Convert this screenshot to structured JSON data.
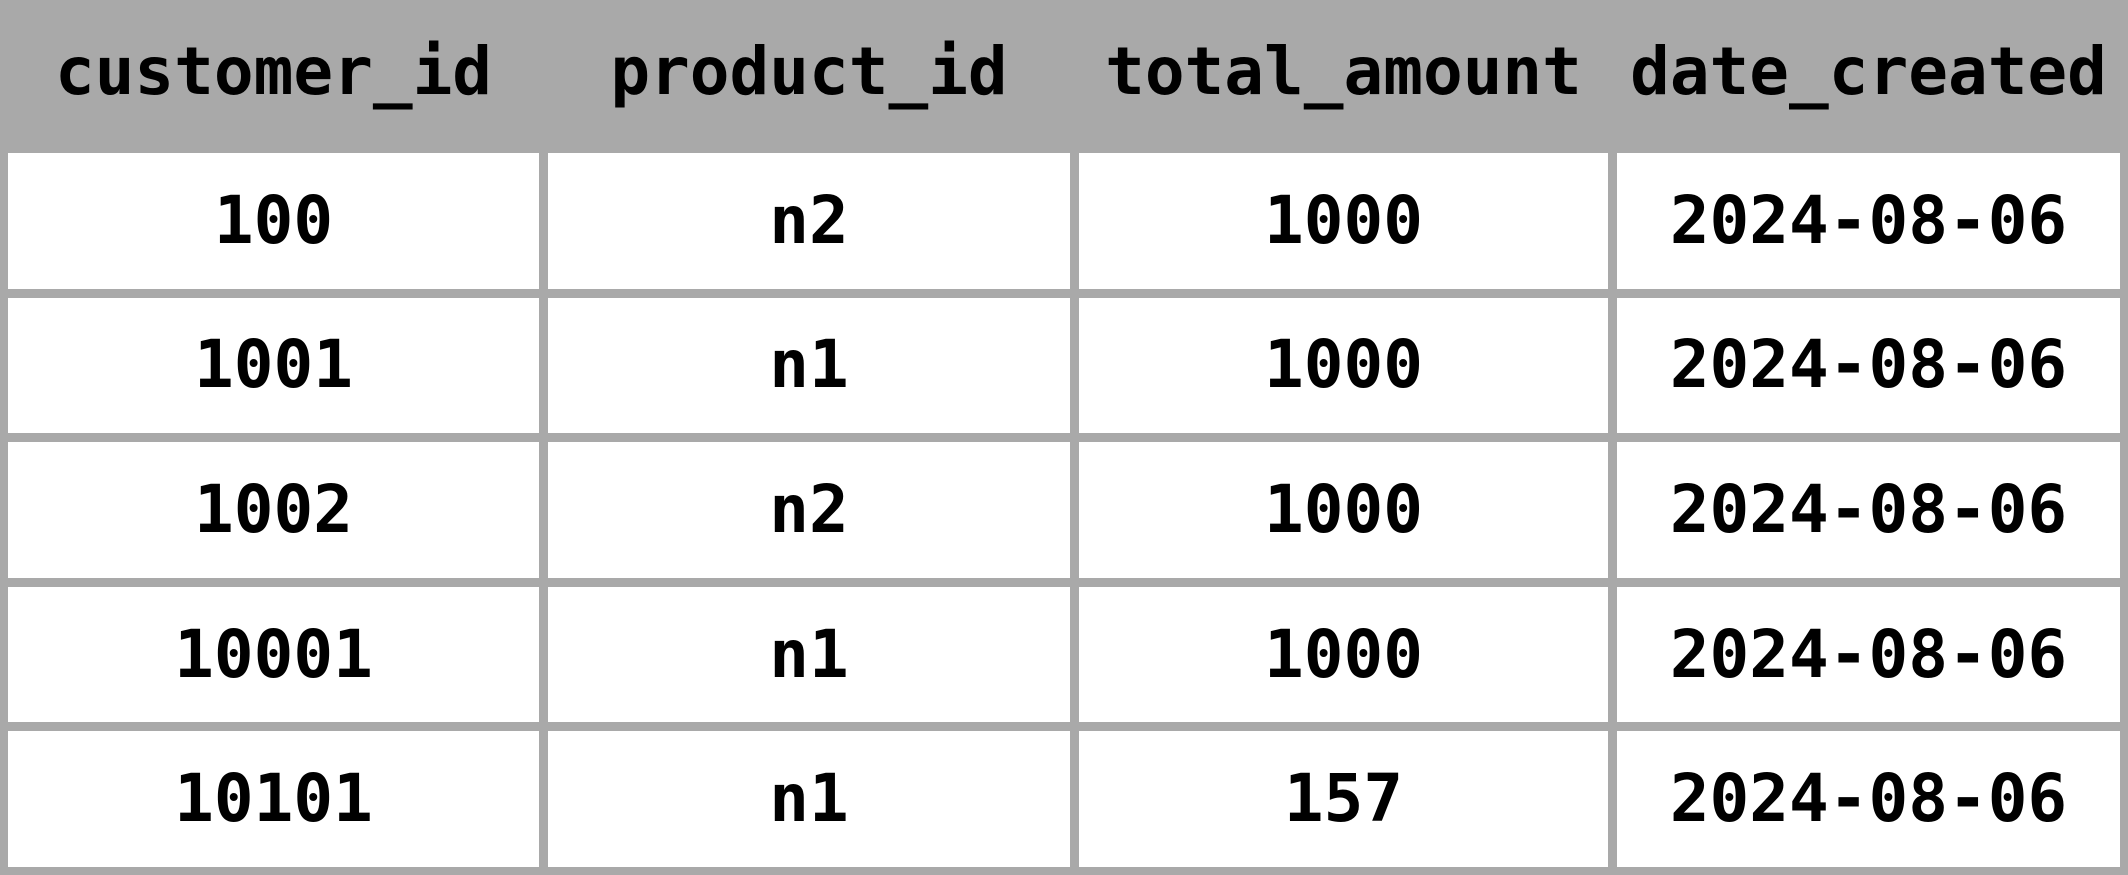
{
  "table": {
    "headers": [
      "customer_id",
      "product_id",
      "total_amount",
      "date_created"
    ],
    "rows": [
      [
        "100",
        "n2",
        "1000",
        "2024-08-06"
      ],
      [
        "1001",
        "n1",
        "1000",
        "2024-08-06"
      ],
      [
        "1002",
        "n2",
        "1000",
        "2024-08-06"
      ],
      [
        "10001",
        "n1",
        "1000",
        "2024-08-06"
      ],
      [
        "10101",
        "n1",
        "157",
        "2024-08-06"
      ]
    ]
  },
  "colors": {
    "background_and_grid": "#a9a9a9",
    "cell_background": "#ffffff",
    "text": "#000000"
  },
  "chart_data": {
    "type": "table",
    "title": "",
    "columns": [
      "customer_id",
      "product_id",
      "total_amount",
      "date_created"
    ],
    "rows": [
      [
        100,
        "n2",
        1000,
        "2024-08-06"
      ],
      [
        1001,
        "n1",
        1000,
        "2024-08-06"
      ],
      [
        1002,
        "n2",
        1000,
        "2024-08-06"
      ],
      [
        10001,
        "n1",
        1000,
        "2024-08-06"
      ],
      [
        10101,
        "n1",
        157,
        "2024-08-06"
      ]
    ],
    "layout": {
      "header_background": "#a9a9a9",
      "body_background": "#ffffff",
      "grid_on": true,
      "text_align": "center",
      "font_weight": "bold"
    }
  }
}
